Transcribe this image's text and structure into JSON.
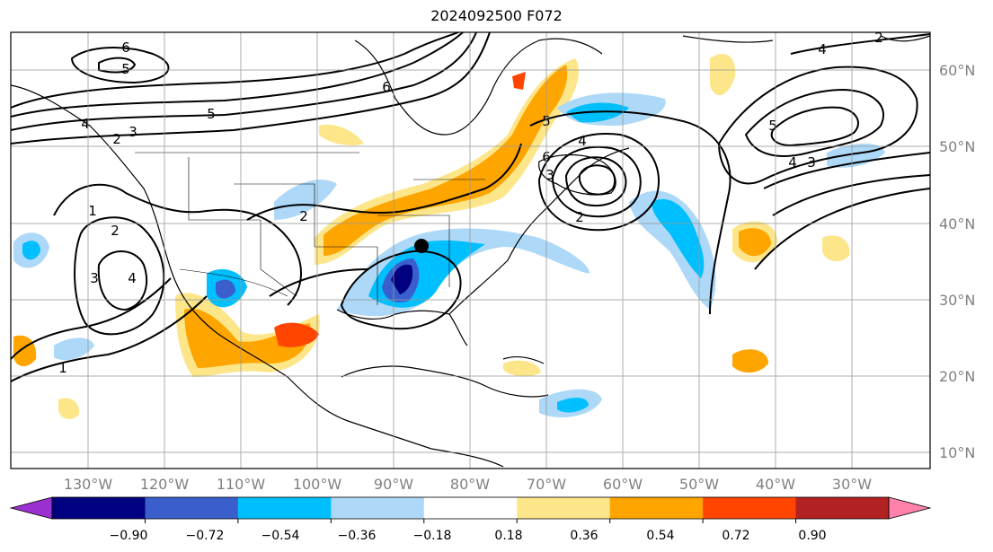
{
  "title": "2024092500 F072",
  "map": {
    "projection": "PlateCarree",
    "longitude_labels": [
      "130°W",
      "120°W",
      "110°W",
      "100°W",
      "90°W",
      "80°W",
      "70°W",
      "60°W",
      "50°W",
      "40°W",
      "30°W"
    ],
    "latitude_labels": [
      "60°N",
      "50°N",
      "40°N",
      "30°N",
      "20°N",
      "10°N"
    ],
    "contour_labels": [
      "6",
      "5",
      "6",
      "5",
      "4",
      "3",
      "2",
      "1",
      "2",
      "3",
      "4",
      "6",
      "5",
      "4",
      "3",
      "2",
      "2",
      "1",
      "4",
      "5",
      "4",
      "3",
      "2"
    ],
    "marker": "black-dot"
  },
  "colorbar": {
    "ticks": [
      "−0.90",
      "−0.72",
      "−0.54",
      "−0.36",
      "−0.18",
      "0.18",
      "0.36",
      "0.54",
      "0.72",
      "0.90"
    ],
    "colors": [
      "#9b30d0",
      "#000080",
      "#3a5fcd",
      "#00bfff",
      "#add8f7",
      "#ffffff",
      "#fde68a",
      "#ffa500",
      "#ff4500",
      "#b22222",
      "#ff82ab"
    ]
  }
}
